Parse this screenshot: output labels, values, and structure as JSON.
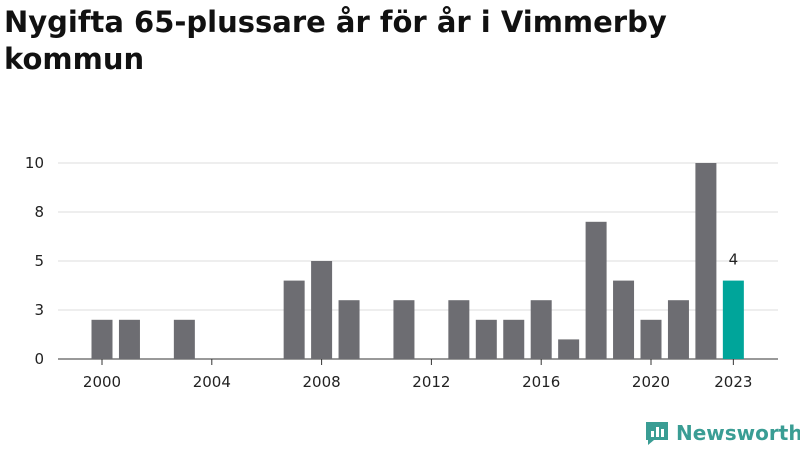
{
  "title": "Nygifta 65-plussare år för år i Vimmerby kommun",
  "brand": "Newsworthy",
  "colors": {
    "bar": "#6d6d72",
    "highlight": "#00a59a",
    "grid": "#dddddd"
  },
  "chart_data": {
    "type": "bar",
    "title": "Nygifta 65-plussare år för år i Vimmerby kommun",
    "x": [
      2000,
      2001,
      2002,
      2003,
      2004,
      2005,
      2006,
      2007,
      2008,
      2009,
      2010,
      2011,
      2012,
      2013,
      2014,
      2015,
      2016,
      2017,
      2018,
      2019,
      2020,
      2021,
      2022,
      2023
    ],
    "values": [
      2,
      2,
      0,
      2,
      0,
      0,
      0,
      4,
      5,
      3,
      0,
      3,
      0,
      3,
      2,
      2,
      3,
      1,
      7,
      4,
      2,
      3,
      10,
      4
    ],
    "highlight_index": 23,
    "highlight_label": "4",
    "xticks": [
      "2000",
      "2004",
      "2008",
      "2012",
      "2016",
      "2020",
      "2023"
    ],
    "yticks": [
      "0",
      "3",
      "5",
      "8",
      "10"
    ],
    "ytick_values": [
      0,
      2.5,
      5,
      7.5,
      10
    ],
    "ylim": [
      0,
      10
    ],
    "xlabel": "",
    "ylabel": "",
    "grid": true
  }
}
